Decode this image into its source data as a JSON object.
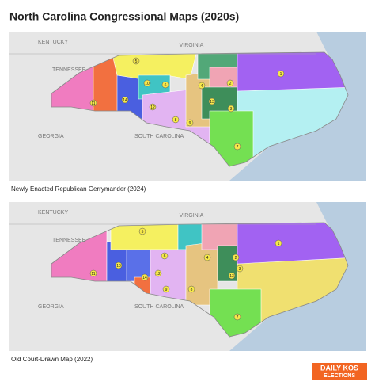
{
  "title": "North Carolina Congressional Maps (2020s)",
  "maps": [
    {
      "caption": "Newly Enacted Republican Gerrymander (2024)",
      "state_labels": [
        "KENTUCKY",
        "VIRGINIA",
        "TENNESSEE",
        "GEORGIA",
        "SOUTH CAROLINA"
      ],
      "districts": [
        "5",
        "10",
        "6",
        "4",
        "13",
        "2",
        "3",
        "1",
        "9",
        "11",
        "14",
        "12",
        "8",
        "7"
      ]
    },
    {
      "caption": "Old Court-Drawn Map (2022)",
      "state_labels": [
        "KENTUCKY",
        "VIRGINIA",
        "TENNESSEE",
        "GEORGIA",
        "SOUTH CAROLINA"
      ],
      "districts": [
        "5",
        "6",
        "4",
        "13",
        "2",
        "3",
        "1",
        "9",
        "11",
        "10",
        "14",
        "12",
        "8",
        "7"
      ]
    }
  ],
  "logo": {
    "line1": "DAILY KOS",
    "line2": "ELECTIONS"
  }
}
